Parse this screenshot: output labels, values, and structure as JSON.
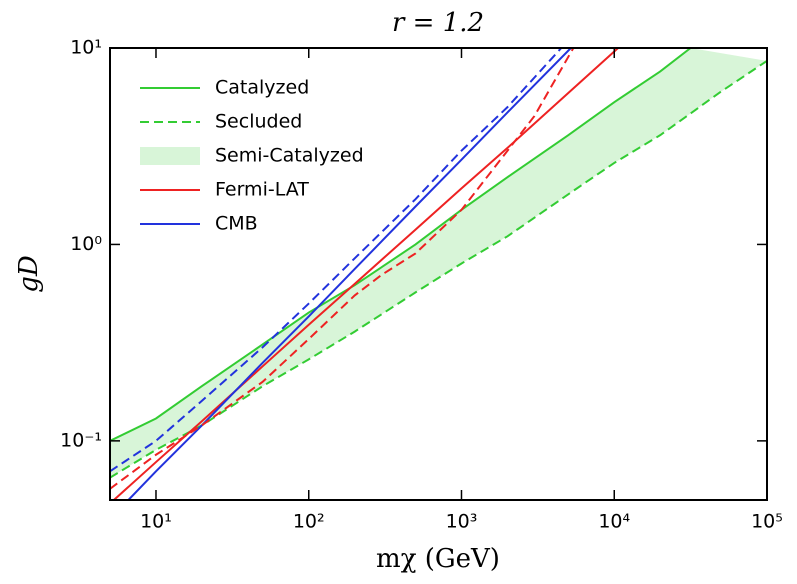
{
  "chart_data": {
    "type": "line",
    "title": "r = 1.2",
    "x_label": "mχ (GeV)",
    "y_label": "gD",
    "xscale": "log",
    "yscale": "log",
    "xlim": [
      5,
      100000
    ],
    "ylim": [
      0.05,
      10
    ],
    "xticks": [
      {
        "value": 10,
        "label": "10¹"
      },
      {
        "value": 100,
        "label": "10²"
      },
      {
        "value": 1000,
        "label": "10³"
      },
      {
        "value": 10000,
        "label": "10⁴"
      },
      {
        "value": 100000,
        "label": "10⁵"
      }
    ],
    "yticks": [
      {
        "value": 0.1,
        "label": "10⁻¹"
      },
      {
        "value": 1,
        "label": "10⁰"
      },
      {
        "value": 10,
        "label": "10¹"
      }
    ],
    "legend": "upper left",
    "series": [
      {
        "name": "Catalyzed",
        "color": "#33cc33",
        "style": "solid",
        "x": [
          5,
          10,
          20,
          50,
          100,
          200,
          500,
          1000,
          2000,
          5000,
          10000,
          20000,
          31600
        ],
        "values": [
          0.1,
          0.13,
          0.19,
          0.31,
          0.45,
          0.62,
          1.0,
          1.5,
          2.2,
          3.6,
          5.3,
          7.6,
          10
        ]
      },
      {
        "name": "Secluded",
        "color": "#33cc33",
        "style": "dashed",
        "x": [
          5,
          10,
          20,
          50,
          100,
          200,
          500,
          1000,
          2000,
          5000,
          10000,
          20000,
          50000,
          100000
        ],
        "values": [
          0.065,
          0.09,
          0.12,
          0.19,
          0.26,
          0.36,
          0.57,
          0.8,
          1.1,
          1.8,
          2.6,
          3.6,
          6.0,
          8.6
        ]
      },
      {
        "name": "Semi-Catalyzed",
        "color": "#d8f5d8",
        "fill_between": [
          0,
          1
        ]
      },
      {
        "name": "Fermi-LAT",
        "color": "#ee2222",
        "style": "solid",
        "x": [
          5.3,
          10,
          20,
          50,
          100,
          200,
          500,
          1000,
          2000,
          5000,
          10600
        ],
        "values": [
          0.05,
          0.078,
          0.126,
          0.24,
          0.39,
          0.63,
          1.19,
          1.93,
          3.1,
          5.9,
          10
        ]
      },
      {
        "name": "CMB",
        "color": "#2233dd",
        "style": "solid",
        "x": [
          6.6,
          10,
          20,
          50,
          100,
          200,
          500,
          1000,
          2000,
          5200
        ],
        "values": [
          0.05,
          0.07,
          0.12,
          0.25,
          0.43,
          0.75,
          1.56,
          2.7,
          4.7,
          10
        ]
      },
      {
        "color": "#ee2222",
        "style": "dashed",
        "x": [
          5,
          10,
          20,
          50,
          100,
          200,
          300,
          500,
          1000,
          2000,
          3000,
          5400
        ],
        "values": [
          0.057,
          0.085,
          0.12,
          0.2,
          0.33,
          0.55,
          0.7,
          0.9,
          1.5,
          3,
          4.5,
          10
        ]
      },
      {
        "color": "#2233dd",
        "style": "dashed",
        "x": [
          5,
          10,
          20,
          50,
          100,
          200,
          500,
          1000,
          2000,
          4500
        ],
        "values": [
          0.07,
          0.1,
          0.16,
          0.3,
          0.5,
          0.85,
          1.7,
          3,
          5,
          10
        ]
      }
    ]
  }
}
